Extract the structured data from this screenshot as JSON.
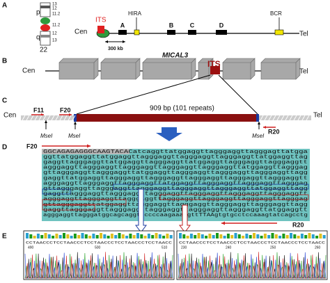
{
  "panel_a": {
    "label": "A",
    "ideogram": {
      "p": "p",
      "q": "q",
      "name": "22",
      "bands": [
        "13",
        "12",
        "11.2",
        "11.2",
        "12",
        "13"
      ]
    },
    "map": {
      "cen": "Cen",
      "its": "ITS",
      "hira": "HIRA",
      "genes": [
        "A",
        "B",
        "C",
        "D"
      ],
      "bcr": "BCR",
      "tel": "Tel",
      "scale": "300 kb"
    }
  },
  "panel_b": {
    "label": "B",
    "gene": "MICAL3",
    "cen": "Cen",
    "its": "ITS",
    "tel": "Tel"
  },
  "panel_c": {
    "label": "C",
    "cen": "Cen",
    "tel": "Tel",
    "primers": [
      "F11",
      "F20",
      "R20"
    ],
    "repeat": "909 bp (101 repeats)",
    "sites": [
      "MseI",
      "MseI",
      "MseI"
    ]
  },
  "panel_d": {
    "label": "D",
    "f20": "F20",
    "r20": "R20",
    "sequence": [
      "GGCAGAGAGGGCAAGTACACatcaggttatggaggttagggaggttagggagttatgga",
      "ggttatggaggttatggaggttagggaggttagggaggttagggaggttatggaggttag",
      "gaggttagggaggttatggaggttagggaggttatggaggttagggaggttagggaggtt",
      "agggaggttagggaggttagggaggttagggaggttagggaggttatggaggttagggag",
      "gttagggaggttagggaggttatggaggttagggaggttagggaggttagggaggttagg",
      "gaggttatggaggttagggaggttagggaggttagggaggttagggaggttagggaggtt",
      "agggaggttagggaggttagggaggttatggaggttagggaggttagggaggttagggag",
      "gttagggaggttagggaggttagggaggttagggaggttagggaggttatggaggttagg",
      "gaggttagggaggttagggaggttagggaggttagggaggttagggaggttagggaggtt",
      "agggaggttagggaggttagggaggttagggaggttagggaggttagggaggttagggag",
      "gttagggaggttatggaggttagggaggttagggaggttagggaggttagggaggttagg",
      "gaggttagggaggttagggaggttagggaggttagggaggttagggaggttatggaggtt",
      "agggaggttagggatggcagcaggttccccaagaaaagttTTAAgtgtgcctccaaagtatcagcctg"
    ]
  },
  "panel_e": {
    "label": "E",
    "traces": [
      {
        "bases": "CCTAACCCTCCTAACCCTCCTAACCCTCCTAACCCTCCTAACC",
        "positions": [
          "490",
          "500",
          "510"
        ]
      },
      {
        "bases": "CCTAACCCTCCTAACCCTCCTAACCCTCCTAACCCTCCTAACC",
        "positions": [
          "230",
          "240",
          "250",
          "260"
        ]
      }
    ]
  }
}
